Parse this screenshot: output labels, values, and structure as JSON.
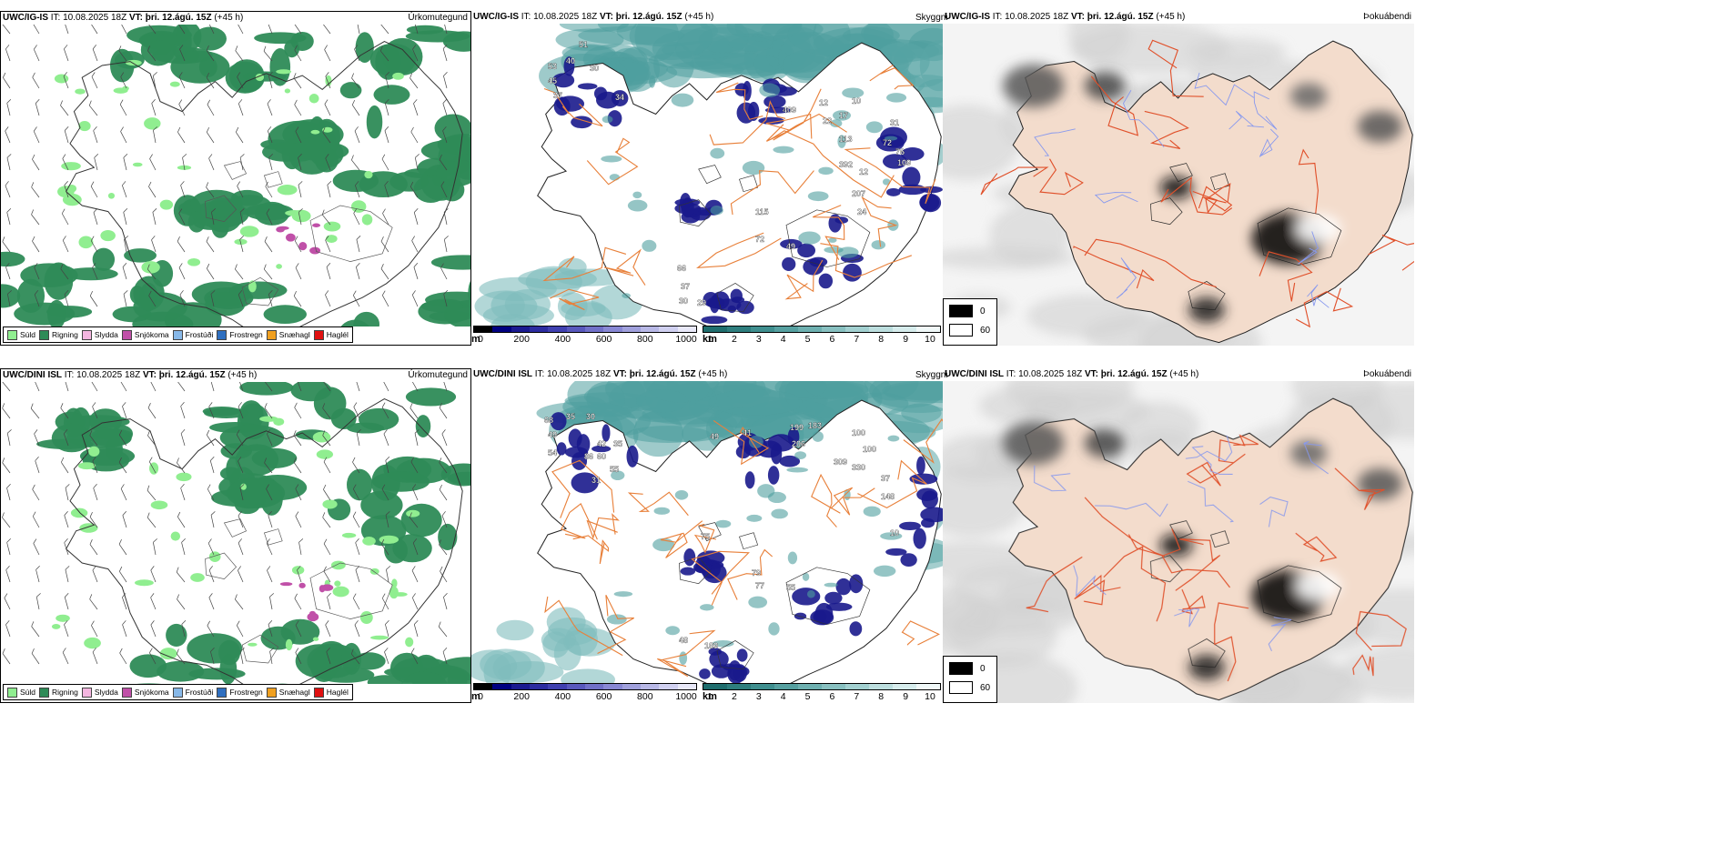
{
  "rows": [
    {
      "precip": {
        "model": "UWC/IG-IS",
        "it_label": "IT:",
        "it_value": "10.08.2025 18Z",
        "vt_label": "VT:",
        "vt_value": "þri. 12.ágú. 15Z",
        "lead": "(+45 h)",
        "product": "Úrkomutegund"
      },
      "visibility": {
        "model": "UWC/IG-IS",
        "it_label": "IT:",
        "it_value": "10.08.2025 18Z",
        "vt_label": "VT:",
        "vt_value": "þri. 12.ágú. 15Z",
        "lead": "(+45 h)",
        "product": "Skyggni",
        "labels": [
          "51",
          "40",
          "30",
          "53",
          "45",
          "37",
          "34",
          "12",
          "10",
          "17",
          "22",
          "113",
          "31",
          "72",
          "76",
          "109",
          "392",
          "12",
          "207",
          "24",
          "115",
          "72",
          "49",
          "66",
          "37",
          "30",
          "29",
          "409"
        ]
      },
      "fog": {
        "model": "UWC/IG-IS",
        "it_label": "IT:",
        "it_value": "10.08.2025 18Z",
        "vt_label": "VT:",
        "vt_value": "þri. 12.ágú. 15Z",
        "lead": "(+45 h)",
        "product": "Þokuábendi"
      }
    },
    {
      "precip": {
        "model": "UWC/DINI ISL",
        "it_label": "IT:",
        "it_value": "10.08.2025 18Z",
        "vt_label": "VT:",
        "vt_value": "þri. 12.ágú. 15Z",
        "lead": "(+45 h)",
        "product": "Úrkomutegund"
      },
      "visibility": {
        "model": "UWC/DINI ISL",
        "it_label": "IT:",
        "it_value": "10.08.2025 18Z",
        "vt_label": "VT:",
        "vt_value": "þri. 12.ágú. 15Z",
        "lead": "(+45 h)",
        "product": "Skyggni",
        "labels": [
          "68",
          "35",
          "30",
          "49",
          "54",
          "42",
          "35",
          "86",
          "60",
          "55",
          "31",
          "49",
          "41",
          "199",
          "183",
          "100",
          "206",
          "309",
          "330",
          "100",
          "37",
          "148",
          "75",
          "79",
          "77",
          "55",
          "48",
          "189",
          "10"
        ]
      },
      "fog": {
        "model": "UWC/DINI ISL",
        "it_label": "IT:",
        "it_value": "10.08.2025 18Z",
        "vt_label": "VT:",
        "vt_value": "þri. 12.ágú. 15Z",
        "lead": "(+45 h)",
        "product": "Þokuábendi"
      }
    }
  ],
  "precip_legend": [
    {
      "label": "Súld",
      "color": "#90ee90"
    },
    {
      "label": "Rigning",
      "color": "#2e8b57"
    },
    {
      "label": "Slydda",
      "color": "#f4b6e0"
    },
    {
      "label": "Snjókoma",
      "color": "#c050a8"
    },
    {
      "label": "Frostúði",
      "color": "#87b8e8"
    },
    {
      "label": "Frostregn",
      "color": "#2f6fc0"
    },
    {
      "label": "Snæhagl",
      "color": "#f0a020"
    },
    {
      "label": "Haglél",
      "color": "#e01010"
    }
  ],
  "height_bar": {
    "unit": "m",
    "ticks": [
      "0",
      "200",
      "400",
      "600",
      "800",
      "1000"
    ],
    "colors": [
      "#000000",
      "#000080",
      "#1a1a90",
      "#2c2ca0",
      "#4040b0",
      "#5858bc",
      "#7070c8",
      "#8888d4",
      "#a0a0dc",
      "#b8b8e6",
      "#d0d0f0",
      "#e8e8f8"
    ]
  },
  "vis_bar": {
    "unit": "km",
    "ticks": [
      "1",
      "2",
      "3",
      "4",
      "5",
      "6",
      "7",
      "8",
      "9",
      "10"
    ],
    "colors": [
      "#1f6e6e",
      "#2e7e7e",
      "#3f8f8f",
      "#56a0a0",
      "#6eb0b0",
      "#88c0c0",
      "#a2d0d0",
      "#bcdede",
      "#d6ecec",
      "#f0f8f8"
    ]
  },
  "fog_legend": {
    "low": "0",
    "high": "60"
  }
}
